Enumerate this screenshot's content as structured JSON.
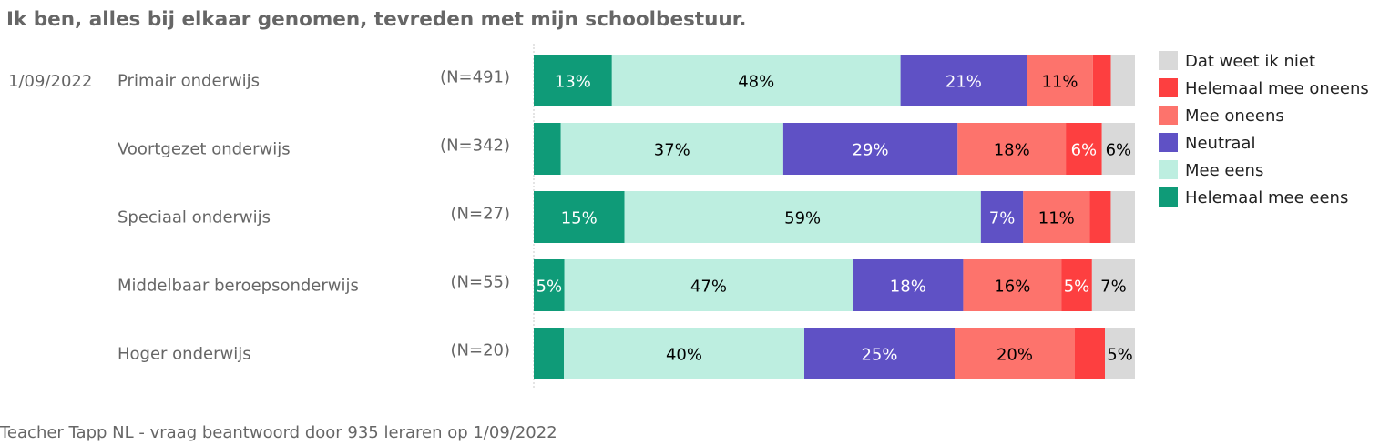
{
  "title": "Ik ben, alles bij elkaar genomen, tevreden met mijn schoolbestuur.",
  "footer": "Teacher Tapp NL - vraag beantwoord door 935 leraren op 1/09/2022",
  "colors": {
    "Helemaal mee eens": "#0f9b78",
    "Mee eens": "#bdeee0",
    "Neutraal": "#5f51c5",
    "Mee oneens": "#fd736c",
    "Helemaal mee oneens": "#fd3f40",
    "Dat weet ik niet": "#d9d9d9"
  },
  "chart_data": {
    "type": "bar",
    "orientation": "horizontal",
    "stacked": true,
    "normalized": true,
    "xlim": [
      0,
      100
    ],
    "unit": "%",
    "date": "1/09/2022",
    "categories": [
      "Primair onderwijs",
      "Voortgezet onderwijs",
      "Speciaal onderwijs",
      "Middelbaar beroepsonderwijs",
      "Hoger onderwijs"
    ],
    "n_labels": [
      "(N=491)",
      "(N=342)",
      "(N=27)",
      "(N=55)",
      "(N=20)"
    ],
    "series": [
      {
        "name": "Helemaal mee eens",
        "values": [
          13,
          4.5,
          15,
          5,
          5
        ],
        "labels": [
          "13%",
          "",
          "15%",
          "5%",
          ""
        ],
        "label_color": "#ffffff"
      },
      {
        "name": "Mee eens",
        "values": [
          48,
          37,
          59,
          47,
          40
        ],
        "labels": [
          "48%",
          "37%",
          "59%",
          "47%",
          "40%"
        ],
        "label_color": "#000000"
      },
      {
        "name": "Neutraal",
        "values": [
          21,
          29,
          7,
          18,
          25
        ],
        "labels": [
          "21%",
          "29%",
          "7%",
          "18%",
          "25%"
        ],
        "label_color": "#ffffff"
      },
      {
        "name": "Mee oneens",
        "values": [
          11,
          18,
          11,
          16,
          20
        ],
        "labels": [
          "11%",
          "18%",
          "11%",
          "16%",
          "20%"
        ],
        "label_color": "#000000"
      },
      {
        "name": "Helemaal mee oneens",
        "values": [
          3,
          6,
          3.5,
          5,
          5
        ],
        "labels": [
          "",
          "6%",
          "",
          "5%",
          ""
        ],
        "label_color": "#ffffff"
      },
      {
        "name": "Dat weet ik niet",
        "values": [
          4,
          5.5,
          4,
          7,
          5
        ],
        "labels": [
          "",
          "6%",
          "",
          "7%",
          "5%"
        ],
        "label_color": "#000000"
      }
    ],
    "legend": {
      "position": "right",
      "order": [
        "Dat weet ik niet",
        "Helemaal mee oneens",
        "Mee oneens",
        "Neutraal",
        "Mee eens",
        "Helemaal mee eens"
      ]
    }
  }
}
